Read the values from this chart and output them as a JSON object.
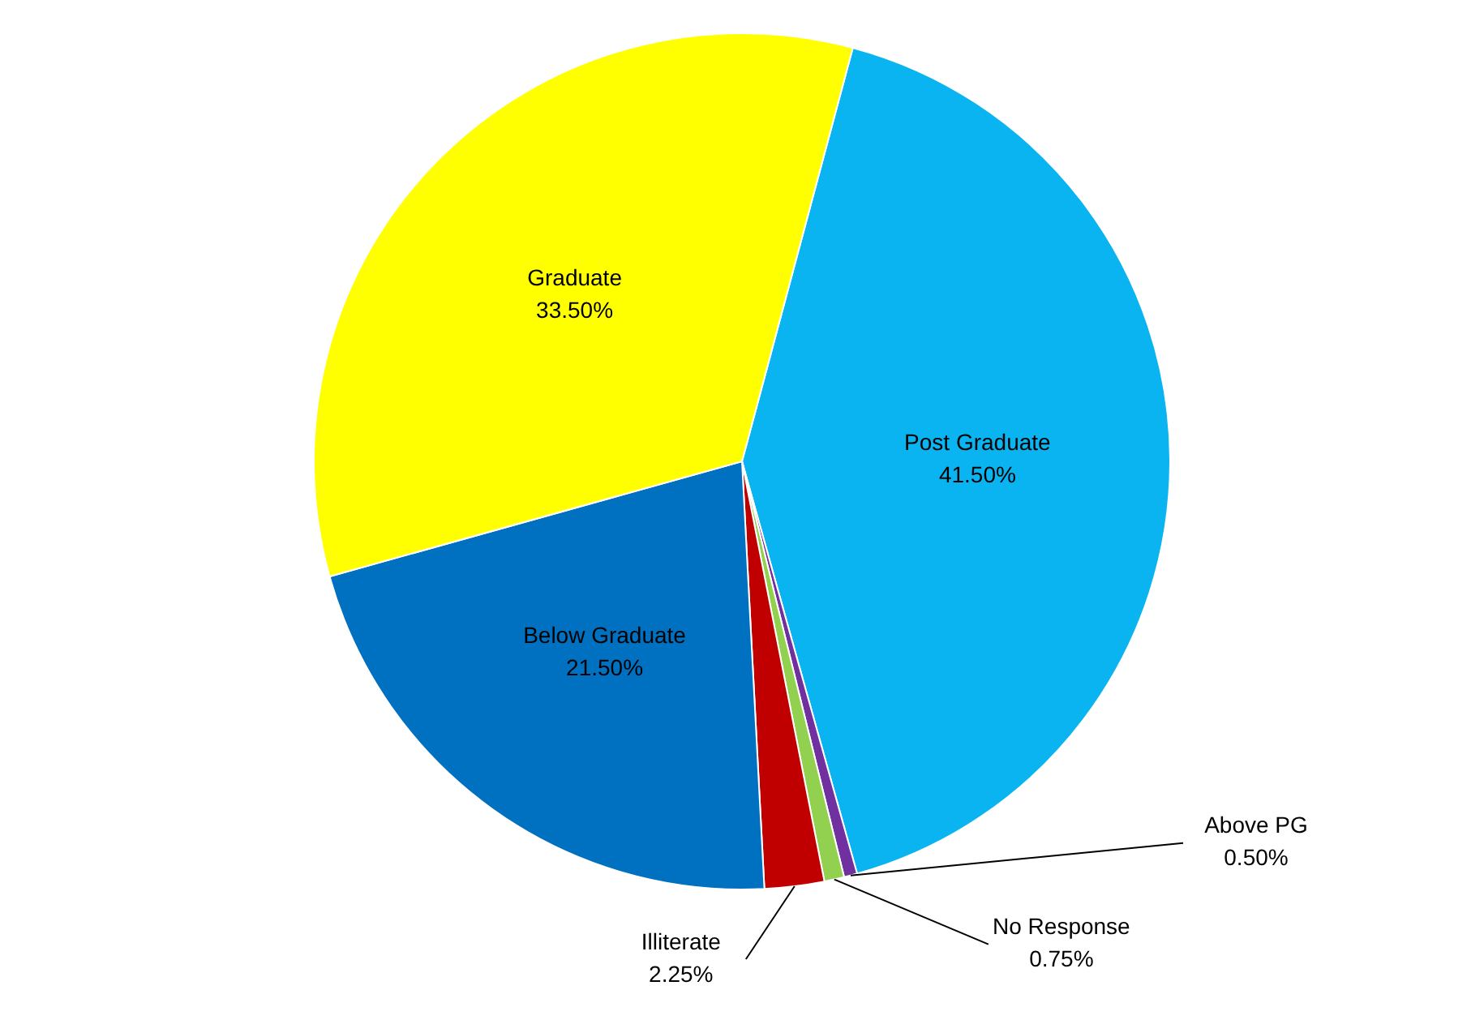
{
  "chart_data": {
    "type": "pie",
    "categories": [
      "Post Graduate",
      "Above PG",
      "No Response",
      "Illiterate",
      "Below Graduate",
      "Graduate"
    ],
    "values": [
      41.5,
      0.5,
      0.75,
      2.25,
      21.5,
      33.5
    ],
    "colors": [
      "#0ab4f0",
      "#7030a0",
      "#92d050",
      "#c00000",
      "#0070c0",
      "#ffff00"
    ],
    "value_labels": [
      "41.50%",
      "0.50%",
      "0.75%",
      "2.25%",
      "21.50%",
      "33.50%"
    ],
    "legend": false
  }
}
